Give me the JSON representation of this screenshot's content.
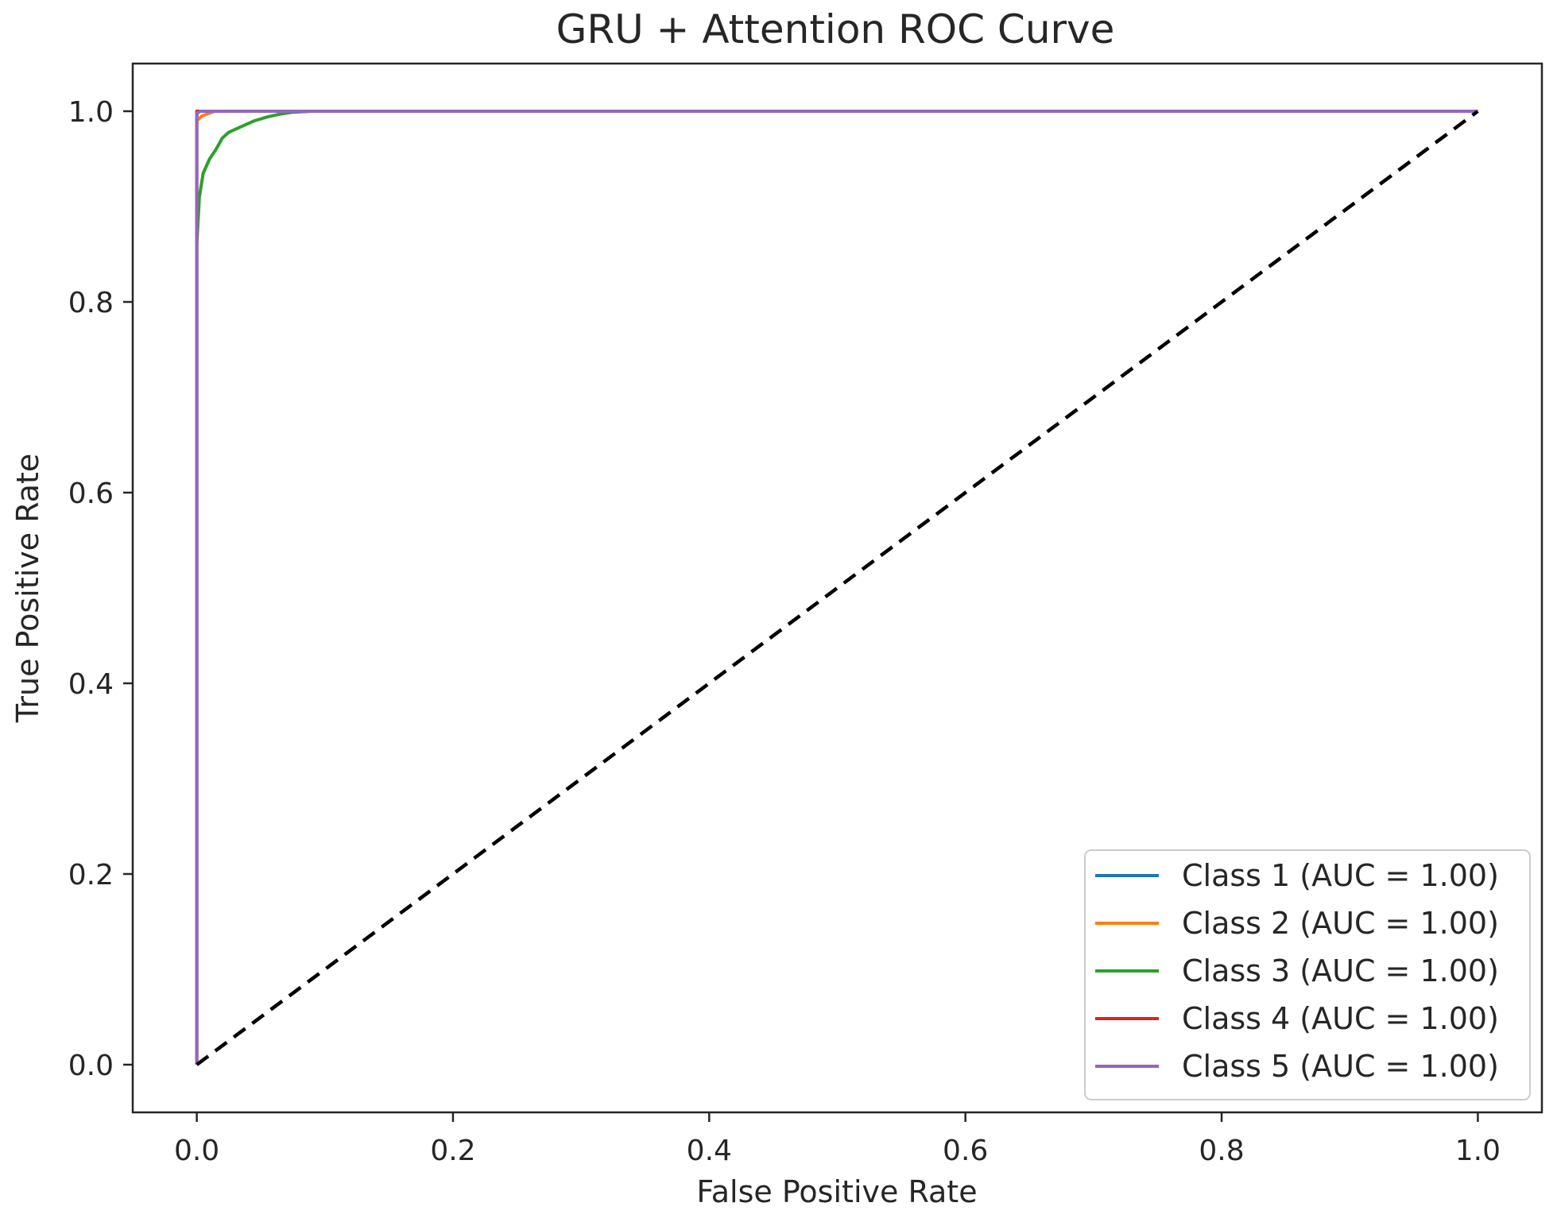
{
  "chart_data": {
    "type": "line",
    "title": "GRU + Attention ROC Curve",
    "xlabel": "False Positive Rate",
    "ylabel": "True Positive Rate",
    "xlim": [
      -0.05,
      1.05
    ],
    "ylim": [
      -0.05,
      1.05
    ],
    "xticks": [
      0.0,
      0.2,
      0.4,
      0.6,
      0.8,
      1.0
    ],
    "xtick_labels": [
      "0.0",
      "0.2",
      "0.4",
      "0.6",
      "0.8",
      "1.0"
    ],
    "yticks": [
      0.0,
      0.2,
      0.4,
      0.6,
      0.8,
      1.0
    ],
    "ytick_labels": [
      "0.0",
      "0.2",
      "0.4",
      "0.6",
      "0.8",
      "1.0"
    ],
    "grid": false,
    "legend_position": "lower-right",
    "series": [
      {
        "name": "Class 1 (AUC = 1.00)",
        "color": "#1f77b4",
        "x": [
          0.0,
          0.0,
          0.001,
          1.0
        ],
        "y": [
          0.0,
          0.995,
          1.0,
          1.0
        ]
      },
      {
        "name": "Class 2 (AUC = 1.00)",
        "color": "#ff7f0e",
        "x": [
          0.0,
          0.0,
          0.004,
          0.01,
          0.014,
          1.0
        ],
        "y": [
          0.0,
          0.99,
          0.995,
          0.998,
          1.0,
          1.0
        ]
      },
      {
        "name": "Class 3 (AUC = 1.00)",
        "color": "#2ca02c",
        "x": [
          0.0,
          0.0,
          0.002,
          0.005,
          0.01,
          0.015,
          0.02,
          0.025,
          0.035,
          0.045,
          0.055,
          0.065,
          0.075,
          0.09,
          1.0
        ],
        "y": [
          0.0,
          0.86,
          0.91,
          0.935,
          0.95,
          0.96,
          0.972,
          0.978,
          0.984,
          0.99,
          0.994,
          0.997,
          0.999,
          1.0,
          1.0
        ]
      },
      {
        "name": "Class 4 (AUC = 1.00)",
        "color": "#d62728",
        "x": [
          0.0,
          0.0,
          1.0
        ],
        "y": [
          0.0,
          1.0,
          1.0
        ]
      },
      {
        "name": "Class 5 (AUC = 1.00)",
        "color": "#9467bd",
        "x": [
          0.0,
          0.0,
          0.003,
          1.0
        ],
        "y": [
          0.0,
          0.998,
          1.0,
          1.0
        ]
      }
    ],
    "reference_line": {
      "style": "dashed",
      "color": "#000000",
      "x": [
        0.0,
        1.0
      ],
      "y": [
        0.0,
        1.0
      ]
    }
  }
}
